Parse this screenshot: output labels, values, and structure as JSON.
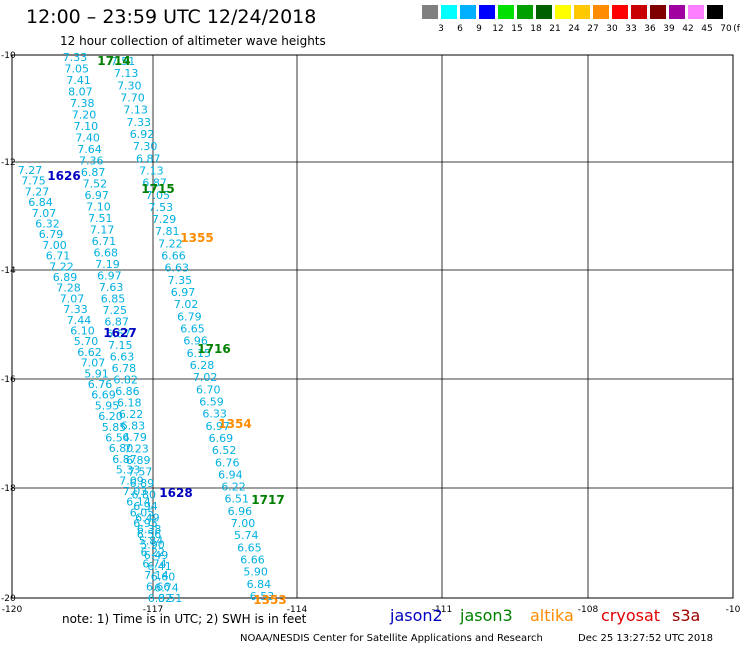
{
  "header": {
    "title": "12:00 – 23:59 UTC 12/24/2018",
    "subtitle": "12 hour collection of altimeter wave heights"
  },
  "color_legend": {
    "labels": [
      "3",
      "6",
      "9",
      "12",
      "15",
      "18",
      "21",
      "24",
      "27",
      "30",
      "33",
      "36",
      "39",
      "42",
      "45",
      "70"
    ],
    "unit": "(ft)",
    "colors": [
      "#808080",
      "#00ffff",
      "#00b0ff",
      "#0000ff",
      "#00e000",
      "#00a000",
      "#006000",
      "#ffff00",
      "#ffc800",
      "#ff8c00",
      "#ff0000",
      "#c80000",
      "#800000",
      "#a000a0",
      "#ff80ff",
      "#000000"
    ]
  },
  "map": {
    "lon_ticks": [
      "-120",
      "-117",
      "-114",
      "-111",
      "-108",
      "-10"
    ],
    "lat_ticks": [
      "-10",
      "-12",
      "-14",
      "-16",
      "-18",
      "-20"
    ],
    "value_color": "#00b0e0",
    "tracks": [
      {
        "values": [
          "7.33",
          "7.05",
          "7.41",
          "8.07",
          "7.38",
          "7.20",
          "7.10",
          "7.40",
          "7.64",
          "7.36",
          "6.87",
          "7.52",
          "6.97",
          "7.10",
          "7.51",
          "7.17",
          "6.71",
          "6.68",
          "7.19",
          "6.97",
          "7.63",
          "6.85",
          "7.25",
          "6.87",
          "6.67",
          "7.15",
          "6.63",
          "6.78",
          "6.82",
          "6.86",
          "6.18",
          "6.22",
          "6.83",
          "6.79",
          "7.23",
          "6.89",
          "7.57",
          "6.89",
          "6.80",
          "6.94",
          "6.49",
          "6.38",
          "5.84",
          "6.22",
          "6.74",
          "7.14",
          "6.66",
          "6.32"
        ]
      },
      {
        "values": [
          "7.51",
          "7.13",
          "7.30",
          "7.70",
          "7.13",
          "7.33",
          "6.92",
          "7.30",
          "6.87",
          "7.13",
          "6.87",
          "7.05",
          "7.53",
          "7.29",
          "7.81",
          "7.22",
          "6.66",
          "6.63",
          "7.35",
          "6.97",
          "7.02",
          "6.79",
          "6.65",
          "6.96",
          "6.15",
          "6.28",
          "7.02",
          "6.70",
          "6.59",
          "6.33",
          "6.97",
          "6.69",
          "6.52",
          "6.76",
          "6.94",
          "6.22",
          "6.51",
          "6.96",
          "7.00",
          "5.74",
          "6.65",
          "6.66",
          "5.90",
          "6.84",
          "6.53"
        ]
      },
      {
        "values": [
          "7.27",
          "7.75",
          "7.27",
          "6.84",
          "7.07",
          "6.32",
          "6.79",
          "7.00",
          "6.71",
          "7.22",
          "6.89",
          "7.28",
          "7.07",
          "7.33",
          "7.44",
          "6.10",
          "5.70",
          "6.62",
          "7.07",
          "5.91",
          "6.76",
          "6.69",
          "5.95",
          "6.20",
          "5.85",
          "6.54",
          "6.80",
          "6.87",
          "5.33",
          "7.09",
          "7.03",
          "6.14",
          "6.05",
          "6.95",
          "6.56",
          "5.90",
          "6.49",
          "6.41",
          "6.60",
          "6.74",
          "6.51"
        ]
      }
    ],
    "pass_labels": [
      {
        "text": "1714",
        "color": "#008000"
      },
      {
        "text": "1715",
        "color": "#008000"
      },
      {
        "text": "1716",
        "color": "#008000"
      },
      {
        "text": "1717",
        "color": "#008000"
      },
      {
        "text": "1626",
        "color": "#0000c0"
      },
      {
        "text": "1627",
        "color": "#0000c0"
      },
      {
        "text": "1628",
        "color": "#0000c0"
      },
      {
        "text": "1355",
        "color": "#ff8c00"
      },
      {
        "text": "1354",
        "color": "#ff8c00"
      },
      {
        "text": "1353",
        "color": "#ff8c00"
      }
    ]
  },
  "footer": {
    "note": "note: 1) Time is in UTC; 2) SWH is in feet",
    "credit": "NOAA/NESDIS Center for Satellite Applications and Research",
    "timestamp": "Dec 25 13:27:52 UTC 2018",
    "satellites": [
      {
        "name": "jason2",
        "color": "#0000c0"
      },
      {
        "name": "jason3",
        "color": "#008000"
      },
      {
        "name": "altika",
        "color": "#ff8c00"
      },
      {
        "name": "cryosat",
        "color": "#e00000"
      },
      {
        "name": "s3a",
        "color": "#a00000"
      }
    ]
  }
}
